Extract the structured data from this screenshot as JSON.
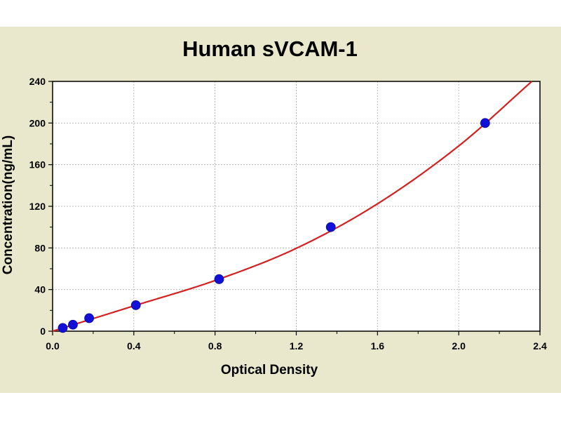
{
  "chart_data": {
    "type": "scatter",
    "title": "Human sVCAM-1",
    "xlabel": "Optical Density",
    "ylabel": "Concentration(ng/mL)",
    "xlim": [
      0.0,
      2.4
    ],
    "ylim": [
      0,
      240
    ],
    "xticks": [
      "0.0",
      "0.4",
      "0.8",
      "1.2",
      "1.6",
      "2.0",
      "2.4"
    ],
    "yticks": [
      "0",
      "40",
      "80",
      "120",
      "160",
      "200",
      "240"
    ],
    "grid": true,
    "points": [
      {
        "x": 0.05,
        "y": 3.12
      },
      {
        "x": 0.1,
        "y": 6.25
      },
      {
        "x": 0.18,
        "y": 12.5
      },
      {
        "x": 0.41,
        "y": 25
      },
      {
        "x": 0.82,
        "y": 50
      },
      {
        "x": 1.37,
        "y": 100
      },
      {
        "x": 2.13,
        "y": 200
      }
    ],
    "fit_curve": {
      "color": "#d42020",
      "points": [
        [
          0.0,
          0.0
        ],
        [
          0.4,
          24.3
        ],
        [
          0.8,
          48.7
        ],
        [
          1.2,
          79.6
        ],
        [
          1.6,
          122.4
        ],
        [
          2.0,
          178.0
        ],
        [
          2.36,
          240.0
        ]
      ]
    },
    "point_color": "#1010d8",
    "background_color": "#e9e7cc"
  }
}
